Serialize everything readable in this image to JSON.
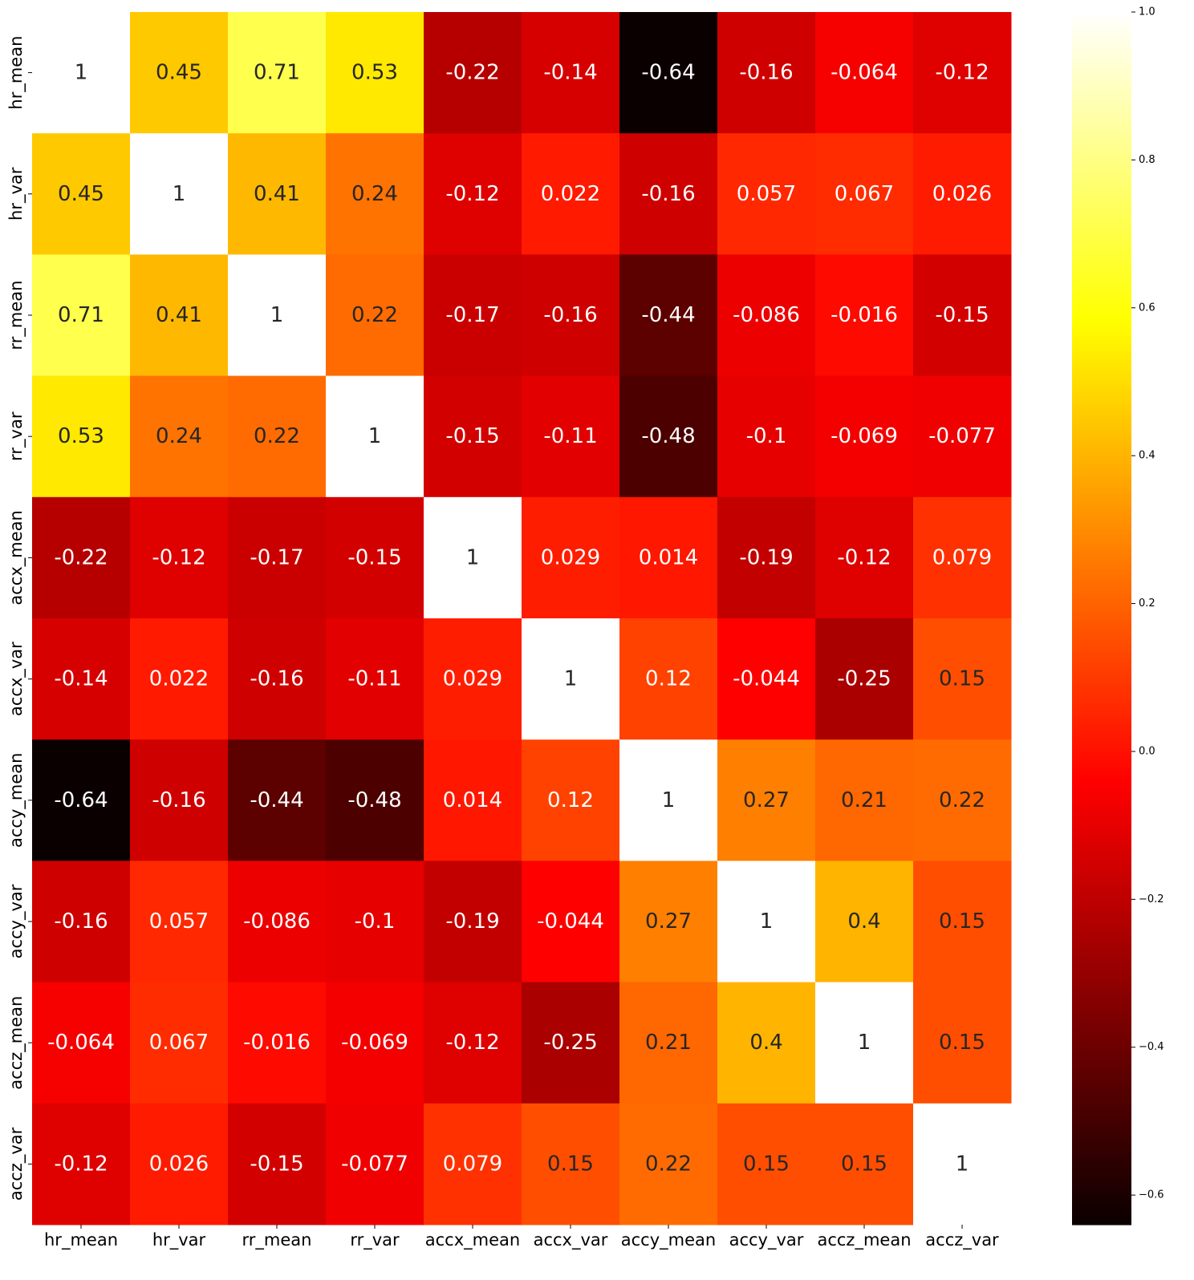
{
  "chart_data": {
    "type": "heatmap",
    "title": "",
    "xlabel": "",
    "ylabel": "",
    "colormap": "hot",
    "x_categories": [
      "hr_mean",
      "hr_var",
      "rr_mean",
      "rr_var",
      "accx_mean",
      "accx_var",
      "accy_mean",
      "accy_var",
      "accz_mean",
      "accz_var"
    ],
    "y_categories": [
      "hr_mean",
      "hr_var",
      "rr_mean",
      "rr_var",
      "accx_mean",
      "accx_var",
      "accy_mean",
      "accy_var",
      "accz_mean",
      "accz_var"
    ],
    "values": [
      [
        1,
        0.45,
        0.71,
        0.53,
        -0.22,
        -0.14,
        -0.64,
        -0.16,
        -0.064,
        -0.12
      ],
      [
        0.45,
        1,
        0.41,
        0.24,
        -0.12,
        0.022,
        -0.16,
        0.057,
        0.067,
        0.026
      ],
      [
        0.71,
        0.41,
        1,
        0.22,
        -0.17,
        -0.16,
        -0.44,
        -0.086,
        -0.016,
        -0.15
      ],
      [
        0.53,
        0.24,
        0.22,
        1,
        -0.15,
        -0.11,
        -0.48,
        -0.1,
        -0.069,
        -0.077
      ],
      [
        -0.22,
        -0.12,
        -0.17,
        -0.15,
        1,
        0.029,
        0.014,
        -0.19,
        -0.12,
        0.079
      ],
      [
        -0.14,
        0.022,
        -0.16,
        -0.11,
        0.029,
        1,
        0.12,
        -0.044,
        -0.25,
        0.15
      ],
      [
        -0.64,
        -0.16,
        -0.44,
        -0.48,
        0.014,
        0.12,
        1,
        0.27,
        0.21,
        0.22
      ],
      [
        -0.16,
        0.057,
        -0.086,
        -0.1,
        -0.19,
        -0.044,
        0.27,
        1,
        0.4,
        0.15
      ],
      [
        -0.064,
        0.067,
        -0.016,
        -0.069,
        -0.12,
        -0.25,
        0.21,
        0.4,
        1,
        0.15
      ],
      [
        -0.12,
        0.026,
        -0.15,
        -0.077,
        0.079,
        0.15,
        0.22,
        0.15,
        0.15,
        1
      ]
    ],
    "colorbar": {
      "vmin": -0.64,
      "vmax": 1.0,
      "ticks": [
        1.0,
        0.8,
        0.6,
        0.4,
        0.2,
        0.0,
        -0.2,
        -0.4,
        -0.6
      ],
      "tick_labels": [
        "1.0",
        "0.8",
        "0.6",
        "0.4",
        "0.2",
        "0.0",
        "−0.2",
        "−0.4",
        "−0.6"
      ]
    },
    "annotated": true,
    "grid": false
  }
}
